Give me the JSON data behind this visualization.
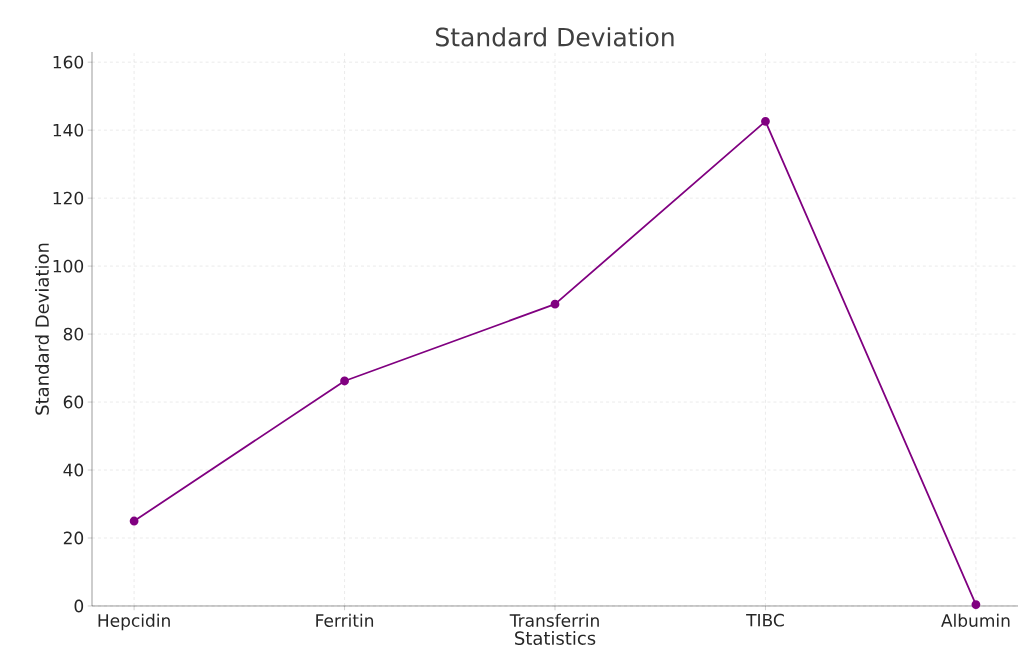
{
  "chart_data": {
    "type": "line",
    "title": "Standard Deviation",
    "xlabel": "Statistics",
    "ylabel": "Standard Deviation",
    "categories": [
      "Hepcidin",
      "Ferritin",
      "Transferrin",
      "TIBC",
      "Albumin"
    ],
    "series": [
      {
        "color": "#800080",
        "values": [
          25,
          66.2,
          88.8,
          142.6,
          0.4
        ]
      }
    ],
    "ylim": [
      0,
      163
    ],
    "yticks": [
      0,
      20,
      40,
      60,
      80,
      100,
      120,
      140,
      160
    ],
    "grid": true,
    "marker": "circle",
    "line_style": "solid"
  }
}
